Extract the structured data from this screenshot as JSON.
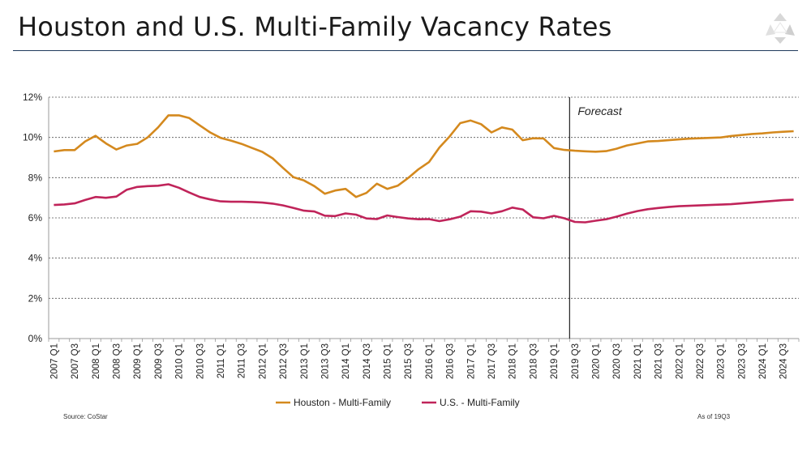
{
  "header": {
    "title": "Houston and U.S. Multi-Family Vacancy Rates"
  },
  "footer": {
    "source": "Source: CoStar",
    "as_of": "As of 19Q3"
  },
  "colors": {
    "houston": "#D4891E",
    "us": "#C0245A",
    "grid": "#555555",
    "divider": "#1f3a5c"
  },
  "logo": {
    "icon": "recycle-triangle-logo"
  },
  "chart_data": {
    "type": "line",
    "title": "",
    "xlabel": "",
    "ylabel": "",
    "ylim": [
      0,
      12
    ],
    "yticks": [
      "0%",
      "2%",
      "4%",
      "6%",
      "8%",
      "10%",
      "12%"
    ],
    "grid": "horizontal dotted",
    "legend_position": "bottom",
    "annotation": {
      "text": "Forecast",
      "at": "2019 Q3"
    },
    "x_tick_labels": [
      "2007 Q1",
      "2007 Q3",
      "2008 Q1",
      "2008 Q3",
      "2009 Q1",
      "2009 Q3",
      "2010 Q1",
      "2010 Q3",
      "2011 Q1",
      "2011 Q3",
      "2012 Q1",
      "2012 Q3",
      "2013 Q1",
      "2013 Q3",
      "2014 Q1",
      "2014 Q3",
      "2015 Q1",
      "2015 Q3",
      "2016 Q1",
      "2016 Q3",
      "2017 Q1",
      "2017 Q3",
      "2018 Q1",
      "2018 Q3",
      "2019 Q1",
      "2019 Q3",
      "2020 Q1",
      "2020 Q3",
      "2021 Q1",
      "2021 Q3",
      "2022 Q1",
      "2022 Q3",
      "2023 Q1",
      "2023 Q3",
      "2024 Q1",
      "2024 Q3"
    ],
    "x": [
      "2007 Q1",
      "2007 Q2",
      "2007 Q3",
      "2007 Q4",
      "2008 Q1",
      "2008 Q2",
      "2008 Q3",
      "2008 Q4",
      "2009 Q1",
      "2009 Q2",
      "2009 Q3",
      "2009 Q4",
      "2010 Q1",
      "2010 Q2",
      "2010 Q3",
      "2010 Q4",
      "2011 Q1",
      "2011 Q2",
      "2011 Q3",
      "2011 Q4",
      "2012 Q1",
      "2012 Q2",
      "2012 Q3",
      "2012 Q4",
      "2013 Q1",
      "2013 Q2",
      "2013 Q3",
      "2013 Q4",
      "2014 Q1",
      "2014 Q2",
      "2014 Q3",
      "2014 Q4",
      "2015 Q1",
      "2015 Q2",
      "2015 Q3",
      "2015 Q4",
      "2016 Q1",
      "2016 Q2",
      "2016 Q3",
      "2016 Q4",
      "2017 Q1",
      "2017 Q2",
      "2017 Q3",
      "2017 Q4",
      "2018 Q1",
      "2018 Q2",
      "2018 Q3",
      "2018 Q4",
      "2019 Q1",
      "2019 Q2",
      "2019 Q3",
      "2019 Q4",
      "2020 Q1",
      "2020 Q2",
      "2020 Q3",
      "2020 Q4",
      "2021 Q1",
      "2021 Q2",
      "2021 Q3",
      "2021 Q4",
      "2022 Q1",
      "2022 Q2",
      "2022 Q3",
      "2022 Q4",
      "2023 Q1",
      "2023 Q2",
      "2023 Q3",
      "2023 Q4",
      "2024 Q1",
      "2024 Q2",
      "2024 Q3",
      "2024 Q4"
    ],
    "series": [
      {
        "name": "Houston - Multi-Family",
        "color": "#D4891E",
        "values": [
          9.3,
          9.37,
          9.37,
          9.8,
          10.08,
          9.7,
          9.4,
          9.6,
          9.68,
          10.0,
          10.5,
          11.1,
          11.1,
          10.96,
          10.6,
          10.25,
          9.98,
          9.84,
          9.68,
          9.48,
          9.28,
          8.96,
          8.48,
          8.02,
          7.86,
          7.58,
          7.2,
          7.36,
          7.44,
          7.04,
          7.24,
          7.7,
          7.44,
          7.6,
          7.98,
          8.42,
          8.77,
          9.5,
          10.06,
          10.71,
          10.84,
          10.66,
          10.25,
          10.5,
          10.39,
          9.86,
          9.96,
          9.95,
          9.47,
          9.38,
          9.34,
          9.31,
          9.29,
          9.32,
          9.44,
          9.6,
          9.7,
          9.8,
          9.82,
          9.86,
          9.9,
          9.94,
          9.96,
          9.98,
          10.0,
          10.07,
          10.12,
          10.17,
          10.2,
          10.25,
          10.28,
          10.31
        ]
      },
      {
        "name": "U.S. - Multi-Family",
        "color": "#C0245A",
        "values": [
          6.64,
          6.67,
          6.72,
          6.89,
          7.04,
          7.0,
          7.06,
          7.4,
          7.54,
          7.58,
          7.6,
          7.67,
          7.5,
          7.26,
          7.04,
          6.92,
          6.82,
          6.8,
          6.8,
          6.79,
          6.76,
          6.71,
          6.62,
          6.49,
          6.36,
          6.32,
          6.11,
          6.09,
          6.22,
          6.16,
          5.97,
          5.94,
          6.12,
          6.04,
          5.97,
          5.93,
          5.94,
          5.84,
          5.93,
          6.06,
          6.33,
          6.31,
          6.22,
          6.33,
          6.51,
          6.42,
          6.03,
          5.98,
          6.1,
          5.98,
          5.8,
          5.78,
          5.86,
          5.93,
          6.06,
          6.21,
          6.34,
          6.43,
          6.49,
          6.54,
          6.58,
          6.6,
          6.62,
          6.64,
          6.66,
          6.68,
          6.72,
          6.76,
          6.8,
          6.84,
          6.88,
          6.9
        ]
      }
    ]
  }
}
